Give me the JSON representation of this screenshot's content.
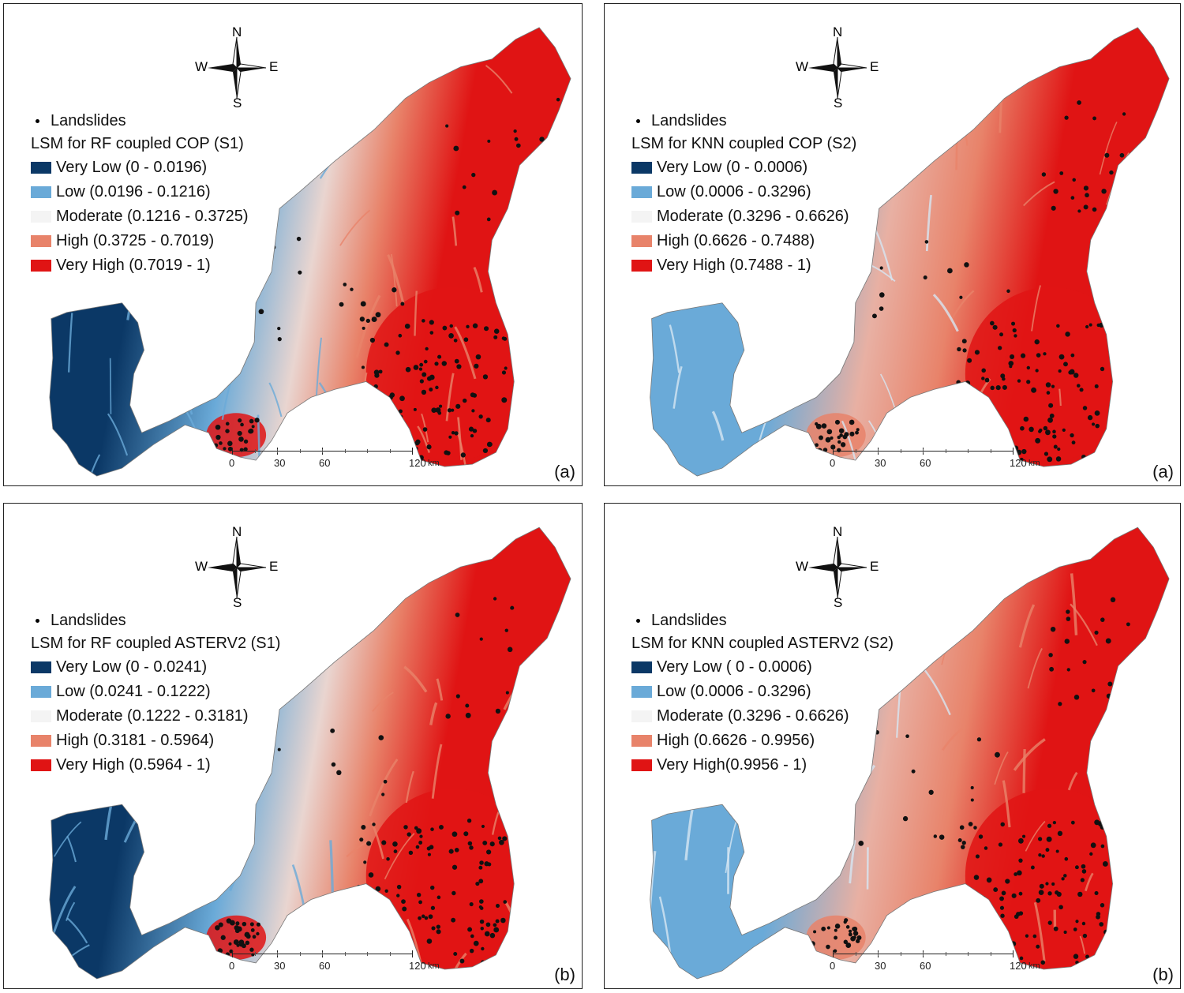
{
  "panels": [
    {
      "id": "p1",
      "title": "LSM for RF coupled COP (S1)",
      "landslides_label": "Landslides",
      "classes": [
        {
          "label": "Very Low (0 - 0.0196)",
          "color": "#0b3866"
        },
        {
          "label": "Low (0.0196 - 0.1216)",
          "color": "#6aaad8"
        },
        {
          "label": "Moderate (0.1216 - 0.3725)",
          "color": "#f4f4f4"
        },
        {
          "label": "High (0.3725 - 0.7019)",
          "color": "#e8836a"
        },
        {
          "label": "Very High (0.7019 - 1)",
          "color": "#e01414"
        }
      ],
      "panel_label": "(a)"
    },
    {
      "id": "p2",
      "title": "LSM for KNN coupled COP (S2)",
      "landslides_label": "Landslides",
      "classes": [
        {
          "label": "Very Low (0 - 0.0006)",
          "color": "#0b3866"
        },
        {
          "label": "Low (0.0006 - 0.3296)",
          "color": "#6aaad8"
        },
        {
          "label": "Moderate (0.3296 - 0.6626)",
          "color": "#f4f4f4"
        },
        {
          "label": "High (0.6626 - 0.7488)",
          "color": "#e8836a"
        },
        {
          "label": "Very High (0.7488 - 1)",
          "color": "#e01414"
        }
      ],
      "panel_label": "(a)"
    },
    {
      "id": "p3",
      "title": "LSM for RF coupled ASTERV2 (S1)",
      "landslides_label": "Landslides",
      "classes": [
        {
          "label": "Very Low (0 - 0.0241)",
          "color": "#0b3866"
        },
        {
          "label": "Low (0.0241 - 0.1222)",
          "color": "#6aaad8"
        },
        {
          "label": "Moderate (0.1222 - 0.3181)",
          "color": "#f4f4f4"
        },
        {
          "label": "High (0.3181 - 0.5964)",
          "color": "#e8836a"
        },
        {
          "label": "Very High (0.5964 - 1)",
          "color": "#e01414"
        }
      ],
      "panel_label": "(b)"
    },
    {
      "id": "p4",
      "title": "LSM  for KNN coupled ASTERV2 (S2)",
      "landslides_label": "Landslides",
      "classes": [
        {
          "label": "Very Low ( 0 - 0.0006)",
          "color": "#0b3866"
        },
        {
          "label": "Low (0.0006 - 0.3296)",
          "color": "#6aaad8"
        },
        {
          "label": "Moderate (0.3296 - 0.6626)",
          "color": "#f4f4f4"
        },
        {
          "label": "High (0.6626 - 0.9956)",
          "color": "#e8836a"
        },
        {
          "label": "Very High(0.9956 - 1)",
          "color": "#e01414"
        }
      ],
      "panel_label": "(b)"
    }
  ],
  "compass": {
    "n": "N",
    "s": "S",
    "e": "E",
    "w": "W"
  },
  "scale": {
    "labels": [
      "0",
      "30",
      "60",
      "120"
    ],
    "unit": "km"
  }
}
